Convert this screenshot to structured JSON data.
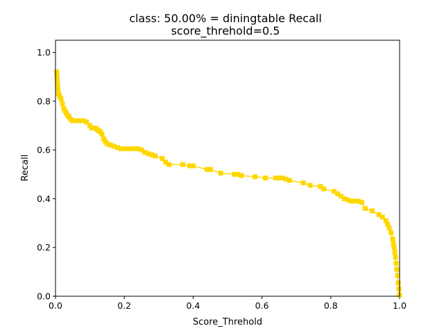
{
  "chart_data": {
    "type": "line",
    "title": "class: 50.00% = diningtable Recall",
    "subtitle": "score_threhold=0.5",
    "xlabel": "Score_Threhold",
    "ylabel": "Recall",
    "xlim": [
      0.0,
      1.0
    ],
    "ylim": [
      0.0,
      1.05
    ],
    "xticks": [
      "0.0",
      "0.2",
      "0.4",
      "0.6",
      "0.8",
      "1.0"
    ],
    "yticks": [
      "0.0",
      "0.2",
      "0.4",
      "0.6",
      "0.8",
      "1.0"
    ],
    "grid": false,
    "legend": "none",
    "series": [
      {
        "color": "#ffd700",
        "marker": "square",
        "x": [
          0.003,
          0.004,
          0.005,
          0.006,
          0.007,
          0.009,
          0.012,
          0.016,
          0.02,
          0.024,
          0.028,
          0.032,
          0.036,
          0.04,
          0.045,
          0.05,
          0.055,
          0.06,
          0.065,
          0.07,
          0.08,
          0.09,
          0.1,
          0.105,
          0.11,
          0.115,
          0.12,
          0.125,
          0.13,
          0.135,
          0.14,
          0.145,
          0.15,
          0.16,
          0.17,
          0.18,
          0.19,
          0.2,
          0.21,
          0.22,
          0.23,
          0.24,
          0.25,
          0.26,
          0.27,
          0.28,
          0.29,
          0.31,
          0.32,
          0.33,
          0.37,
          0.39,
          0.4,
          0.44,
          0.45,
          0.48,
          0.52,
          0.53,
          0.54,
          0.58,
          0.61,
          0.64,
          0.65,
          0.66,
          0.67,
          0.68,
          0.72,
          0.74,
          0.77,
          0.78,
          0.81,
          0.82,
          0.83,
          0.84,
          0.85,
          0.86,
          0.87,
          0.88,
          0.89,
          0.9,
          0.92,
          0.94,
          0.95,
          0.96,
          0.965,
          0.97,
          0.975,
          0.98,
          0.982,
          0.984,
          0.986,
          0.988,
          0.99,
          0.992,
          0.994,
          0.996,
          0.998,
          1.0
        ],
        "y": [
          0.92,
          0.91,
          0.89,
          0.87,
          0.85,
          0.83,
          0.82,
          0.81,
          0.79,
          0.77,
          0.76,
          0.75,
          0.74,
          0.735,
          0.725,
          0.72,
          0.72,
          0.72,
          0.72,
          0.72,
          0.72,
          0.715,
          0.7,
          0.69,
          0.69,
          0.69,
          0.685,
          0.68,
          0.675,
          0.665,
          0.645,
          0.635,
          0.625,
          0.62,
          0.615,
          0.61,
          0.605,
          0.605,
          0.605,
          0.605,
          0.605,
          0.605,
          0.6,
          0.59,
          0.585,
          0.58,
          0.575,
          0.565,
          0.55,
          0.54,
          0.54,
          0.535,
          0.535,
          0.52,
          0.52,
          0.505,
          0.5,
          0.5,
          0.495,
          0.49,
          0.485,
          0.485,
          0.485,
          0.485,
          0.48,
          0.475,
          0.465,
          0.455,
          0.45,
          0.44,
          0.43,
          0.42,
          0.41,
          0.4,
          0.395,
          0.39,
          0.39,
          0.39,
          0.385,
          0.36,
          0.35,
          0.335,
          0.325,
          0.31,
          0.295,
          0.28,
          0.26,
          0.235,
          0.215,
          0.2,
          0.18,
          0.16,
          0.135,
          0.11,
          0.085,
          0.055,
          0.03,
          0.005
        ]
      }
    ]
  }
}
